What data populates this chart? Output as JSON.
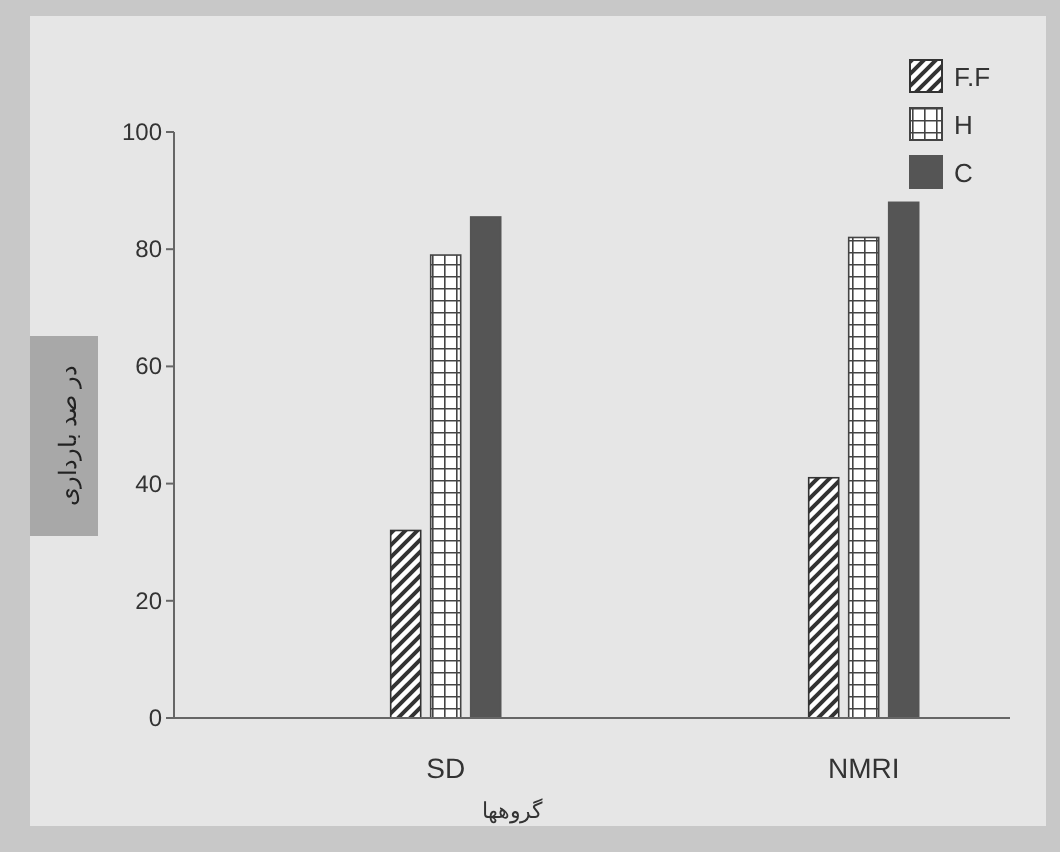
{
  "chart_data": {
    "type": "bar",
    "xlabel": "گروهها",
    "ylabel": "در صد بارداری",
    "categories": [
      "SD",
      "NMRI"
    ],
    "series": [
      {
        "name": "F.F",
        "color": "#333333",
        "values": [
          32,
          41
        ]
      },
      {
        "name": "H",
        "color": "#444444",
        "values": [
          79,
          82
        ]
      },
      {
        "name": "C",
        "color": "#555555",
        "values": [
          85.5,
          88
        ]
      }
    ],
    "ylim": [
      0,
      100
    ],
    "yticks": [
      0,
      20,
      40,
      60,
      80,
      100
    ],
    "legend": "top right"
  }
}
